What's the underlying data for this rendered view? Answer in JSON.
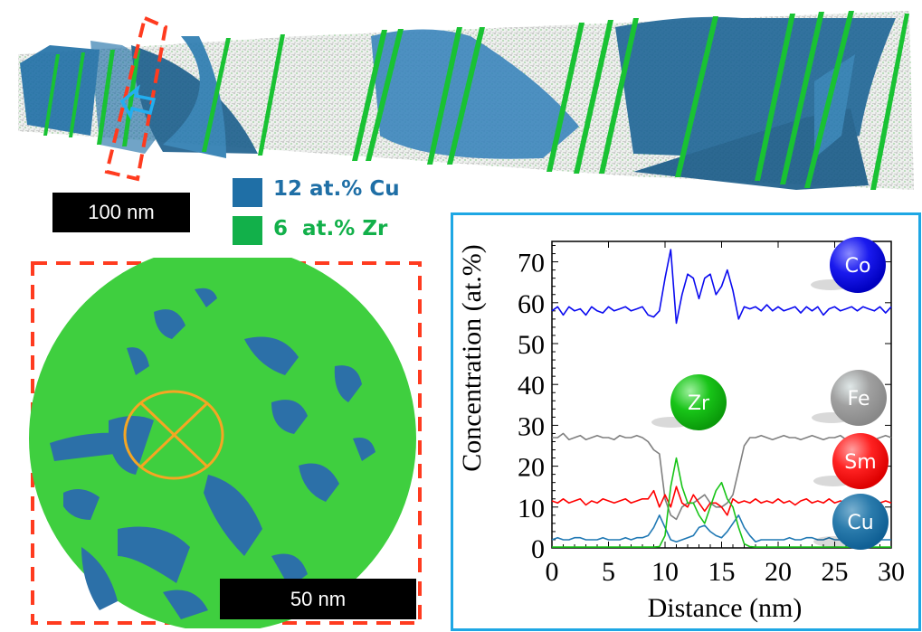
{
  "top_panel": {
    "scale_bar_label": "100 nm",
    "legend": [
      {
        "label": "12 at.% Cu",
        "color": "#1f6fa6"
      },
      {
        "label": "6  at.% Zr",
        "color": "#12b04a"
      }
    ],
    "arrow_icon": "arrow-left-icon",
    "highlight_box_color": "#ff3b1f"
  },
  "bottom_left_panel": {
    "scale_bar_label": "50 nm",
    "marker_icon": "circle-x-icon",
    "marker_color": "#f5a623",
    "border_color": "#ff3b1f"
  },
  "chart_data": {
    "type": "line",
    "xlabel": "Distance (nm)",
    "ylabel": "Concentration (at.%)",
    "xlim": [
      0,
      30
    ],
    "ylim": [
      0,
      75
    ],
    "xticks": [
      "0",
      "5",
      "10",
      "15",
      "20",
      "25",
      "30"
    ],
    "yticks": [
      "0",
      "10",
      "20",
      "30",
      "40",
      "50",
      "60",
      "70"
    ],
    "grid": false,
    "legend_placement": "right (element balls)",
    "x": [
      0,
      0.5,
      1,
      1.5,
      2,
      2.5,
      3,
      3.5,
      4,
      4.5,
      5,
      5.5,
      6,
      6.5,
      7,
      7.5,
      8,
      8.5,
      9,
      9.5,
      10,
      10.5,
      11,
      11.5,
      12,
      12.5,
      13,
      13.5,
      14,
      14.5,
      15,
      15.5,
      16,
      16.5,
      17,
      17.5,
      18,
      18.5,
      19,
      19.5,
      20,
      20.5,
      21,
      21.5,
      22,
      22.5,
      23,
      23.5,
      24,
      24.5,
      25,
      25.5,
      26,
      26.5,
      27,
      27.5,
      28,
      28.5,
      29,
      29.5,
      30
    ],
    "series": [
      {
        "name": "Co",
        "color": "#0a0af0",
        "values": [
          58,
          59,
          57,
          59,
          58,
          58.5,
          57,
          59,
          58,
          57.5,
          59,
          58,
          58.5,
          59,
          58,
          58.5,
          59,
          57,
          56.5,
          58,
          66,
          73,
          55,
          62,
          67,
          66,
          61,
          66,
          67,
          62,
          64,
          68,
          63,
          56,
          59,
          58.5,
          59,
          58,
          59.5,
          58,
          59,
          58,
          58.5,
          59,
          57.5,
          59,
          58,
          59,
          57,
          58.5,
          59,
          58,
          58.5,
          59,
          58,
          59,
          58.5,
          58,
          59,
          57.5,
          59
        ]
      },
      {
        "name": "Fe",
        "color": "#808080",
        "values": [
          27,
          27,
          28,
          26.5,
          27,
          27.5,
          26.5,
          27,
          27.5,
          27,
          27,
          26.5,
          27.5,
          27,
          27,
          27.5,
          27,
          26,
          24,
          23,
          12,
          8,
          7,
          10,
          11,
          11,
          12,
          13,
          11,
          10,
          10,
          11,
          13,
          19,
          25,
          27,
          27,
          27.5,
          27,
          26.5,
          27,
          27.5,
          27,
          27,
          26.5,
          27,
          27.5,
          27,
          26.5,
          27,
          27,
          27.5,
          26.5,
          27,
          27.5,
          27,
          27,
          26.5,
          27,
          27.5,
          27
        ]
      },
      {
        "name": "Sm",
        "color": "#ff0000",
        "values": [
          11.5,
          11,
          12,
          11,
          11.5,
          12,
          10.5,
          11.5,
          11,
          12,
          11.5,
          11,
          11.5,
          12,
          11,
          11.5,
          12,
          12,
          14,
          10,
          13,
          10,
          15,
          11,
          10,
          13,
          11,
          9,
          11,
          11,
          10,
          8,
          12,
          11,
          11.5,
          11,
          12,
          11,
          11.5,
          11,
          12,
          11,
          11.5,
          10.5,
          11.5,
          12,
          11,
          11.5,
          11,
          12,
          11,
          11.5,
          11,
          12,
          11,
          11.5,
          11,
          12,
          11,
          11.5,
          11
        ]
      },
      {
        "name": "Zr",
        "color": "#18c418",
        "values": [
          0.2,
          0.2,
          0.2,
          0.2,
          0.2,
          0.2,
          0.2,
          0.2,
          0.2,
          0.2,
          0.2,
          0.2,
          0.2,
          0.2,
          0.2,
          0.2,
          0.2,
          0.2,
          0.2,
          0.3,
          3,
          15,
          22,
          15,
          11,
          11,
          8,
          6,
          10,
          14,
          16,
          12,
          10,
          5,
          1,
          0.3,
          0.2,
          0.2,
          0.2,
          0.2,
          0.2,
          0.2,
          0.2,
          0.2,
          0.2,
          0.2,
          0.2,
          0.2,
          0.2,
          0.2,
          0.2,
          0.2,
          0.2,
          0.2,
          0.2,
          0.2,
          0.2,
          0.2,
          0.2,
          0.2,
          0.2
        ]
      },
      {
        "name": "Cu",
        "color": "#1f78b4",
        "values": [
          2,
          2.5,
          2,
          2,
          2.5,
          2.5,
          2,
          2,
          2,
          2.5,
          2,
          2,
          2,
          2.5,
          2,
          2.5,
          2.5,
          3,
          5,
          8,
          5,
          2,
          1.5,
          2,
          2.5,
          3,
          5,
          5.5,
          4,
          3,
          2.5,
          4,
          6,
          8,
          5,
          3,
          1.5,
          2,
          2,
          2,
          2,
          2,
          2.5,
          2,
          2,
          2.5,
          2.5,
          2,
          2,
          2.5,
          2,
          2,
          2,
          2.5,
          2,
          2,
          2,
          2,
          2,
          2,
          2
        ]
      }
    ],
    "annotations": [
      "Co",
      "Zr",
      "Fe",
      "Sm",
      "Cu"
    ]
  }
}
